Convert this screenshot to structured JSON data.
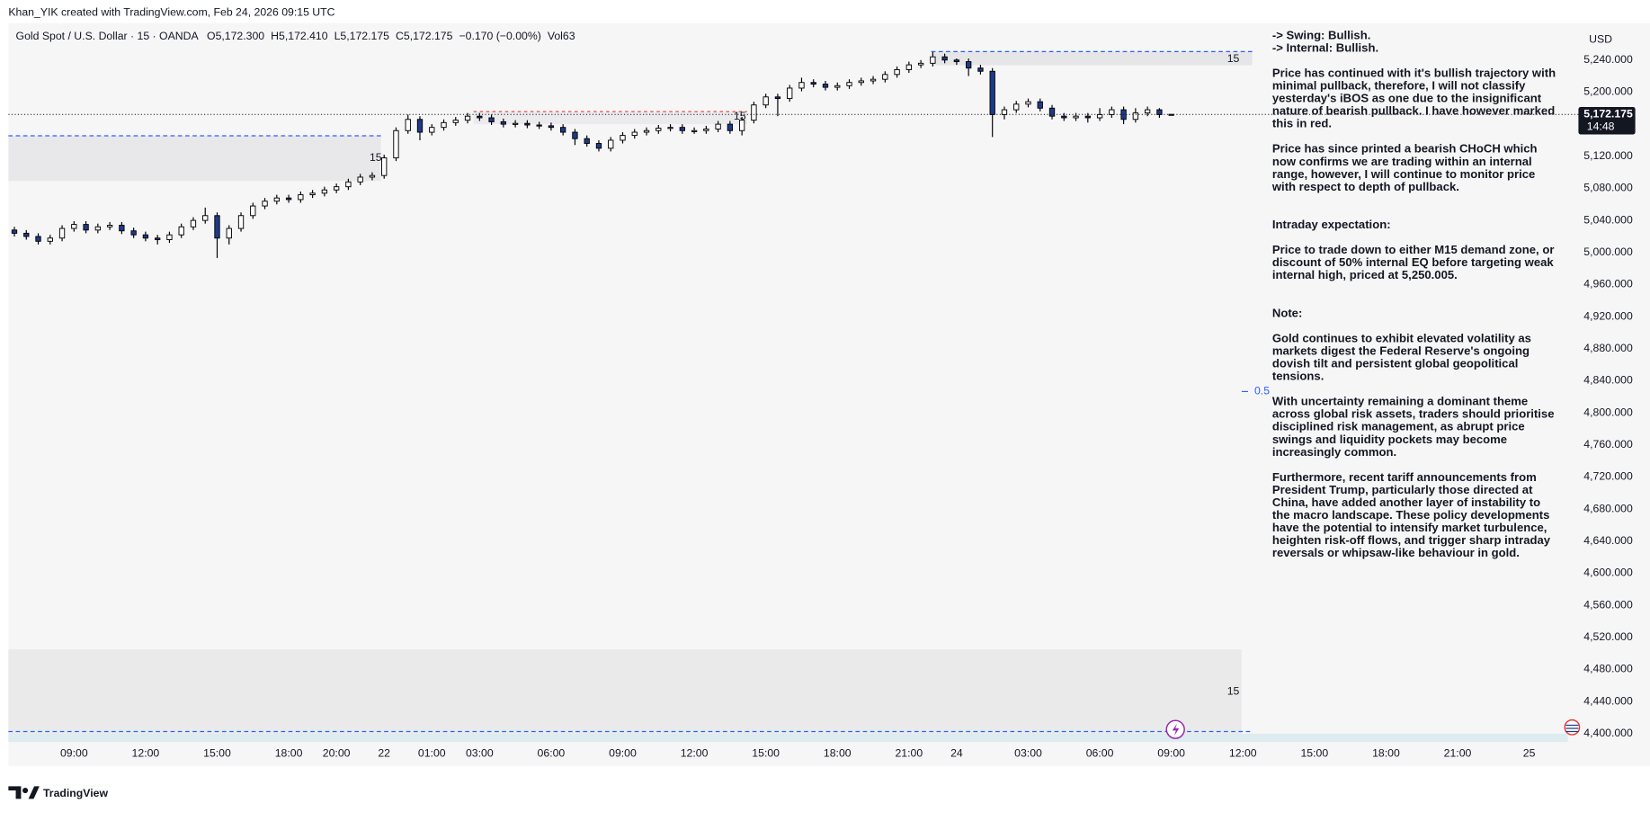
{
  "header": {
    "credit": "Khan_YIK created with TradingView.com, Feb 24, 2026 09:15 UTC",
    "symbol": "Gold Spot / U.S. Dollar · 15 · OANDA",
    "ohlc": [
      "O5,172.300",
      "H5,172.410",
      "L5,172.175",
      "C5,172.175",
      "−0.170 (−0.00%)",
      "Vol63"
    ]
  },
  "notes": [
    "-> Swing: Bullish.",
    "-> Internal: Bullish.",
    "Price has continued with it's bullish trajectory with minimal pullback, therefore, I will not classify yesterday's iBOS as one due to the insignificant nature of bearish pullback.  I have however marked this in red.",
    "Price has since printed a bearish CHoCH which now confirms we are trading within an internal range, however, I will continue to monitor price with respect to depth of pullback.",
    "Intraday expectation:",
    "Price to trade down to either M15 demand zone, or discount of 50% internal EQ before targeting weak internal high, priced at 5,250.005.",
    "Note:",
    "Gold continues to exhibit elevated volatility as markets digest the Federal Reserve's ongoing dovish tilt and persistent global geopolitical tensions.",
    "With uncertainty remaining a dominant theme across global risk assets, traders should prioritise disciplined risk management, as abrupt price swings and liquidity pockets may become increasingly common.",
    "Furthermore, recent tariff announcements from President Trump, particularly those directed at China, have added another layer of instability to the macro landscape. These policy developments have the potential to intensify market turbulence, heighten risk-off flows, and trigger sharp intraday reversals or whipsaw-like behaviour in gold."
  ],
  "footer": {
    "logo": "TradingView"
  },
  "chart_data": {
    "type": "candlestick",
    "currency": "USD",
    "up_color": "#ffffff",
    "down_color": "#1e3a8a",
    "wick_color": "#000000",
    "grid": false,
    "xlim": [
      0,
      261.5
    ],
    "ylim": [
      4389.5,
      5286
    ],
    "xticks": [
      {
        "value": 11,
        "label": "09:00"
      },
      {
        "value": 23,
        "label": "12:00"
      },
      {
        "value": 35,
        "label": "15:00"
      },
      {
        "value": 47,
        "label": "18:00"
      },
      {
        "value": 55,
        "label": "20:00"
      },
      {
        "value": 63,
        "label": "22"
      },
      {
        "value": 71,
        "label": "01:00"
      },
      {
        "value": 79,
        "label": "03:00"
      },
      {
        "value": 91,
        "label": "06:00"
      },
      {
        "value": 103,
        "label": "09:00"
      },
      {
        "value": 115,
        "label": "12:00"
      },
      {
        "value": 127,
        "label": "15:00"
      },
      {
        "value": 139,
        "label": "18:00"
      },
      {
        "value": 151,
        "label": "21:00"
      },
      {
        "value": 159,
        "label": "24"
      },
      {
        "value": 171,
        "label": "03:00"
      },
      {
        "value": 183,
        "label": "06:00"
      },
      {
        "value": 195,
        "label": "09:00"
      },
      {
        "value": 207,
        "label": "12:00"
      },
      {
        "value": 219,
        "label": "15:00"
      },
      {
        "value": 231,
        "label": "18:00"
      },
      {
        "value": 243,
        "label": "21:00"
      },
      {
        "value": 255,
        "label": "25"
      }
    ],
    "yticks": [
      {
        "value": 5240,
        "label": "5,240.000"
      },
      {
        "value": 5200,
        "label": "5,200.000"
      },
      {
        "value": 5160,
        "label": "5,160.000"
      },
      {
        "value": 5120,
        "label": "5,120.000"
      },
      {
        "value": 5080,
        "label": "5,080.000"
      },
      {
        "value": 5040,
        "label": "5,040.000"
      },
      {
        "value": 5000,
        "label": "5,000.000"
      },
      {
        "value": 4960,
        "label": "4,960.000"
      },
      {
        "value": 4920,
        "label": "4,920.000"
      },
      {
        "value": 4880,
        "label": "4,880.000"
      },
      {
        "value": 4840,
        "label": "4,840.000"
      },
      {
        "value": 4800,
        "label": "4,800.000"
      },
      {
        "value": 4760,
        "label": "4,760.000"
      },
      {
        "value": 4720,
        "label": "4,720.000"
      },
      {
        "value": 4680,
        "label": "4,680.000"
      },
      {
        "value": 4640,
        "label": "4,640.000"
      },
      {
        "value": 4600,
        "label": "4,600.000"
      },
      {
        "value": 4560,
        "label": "4,560.000"
      },
      {
        "value": 4520,
        "label": "4,520.000"
      },
      {
        "value": 4480,
        "label": "4,480.000"
      },
      {
        "value": 4440,
        "label": "4,440.000"
      },
      {
        "value": 4400,
        "label": "4,400.000"
      }
    ],
    "last_price": {
      "value": 5172.175,
      "label": "5,172.175"
    },
    "countdown": "14:48",
    "drawing_labels": [
      "15",
      "15",
      "15",
      "15",
      "0.5"
    ],
    "x": [
      1,
      3,
      5,
      7,
      9,
      11,
      13,
      15,
      17,
      19,
      21,
      23,
      25,
      27,
      29,
      31,
      33,
      35,
      37,
      39,
      41,
      43,
      45,
      47,
      49,
      51,
      53,
      55,
      57,
      59,
      61,
      63,
      65,
      67,
      69,
      71,
      73,
      75,
      77,
      79,
      81,
      83,
      85,
      87,
      89,
      91,
      93,
      95,
      97,
      99,
      101,
      103,
      105,
      107,
      109,
      111,
      113,
      115,
      117,
      119,
      121,
      123,
      125,
      127,
      129,
      131,
      133,
      135,
      137,
      139,
      141,
      143,
      145,
      147,
      149,
      151,
      153,
      155,
      157,
      159,
      161,
      163,
      165,
      167,
      169,
      171,
      173,
      175,
      177,
      179,
      181,
      183,
      185,
      187,
      189,
      191,
      193,
      195
    ],
    "open": [
      5028,
      5024,
      5020,
      5014,
      5018,
      5030,
      5035,
      5028,
      5032,
      5034,
      5027,
      5022,
      5018,
      5016,
      5022,
      5032,
      5040,
      5046,
      5018,
      5030,
      5046,
      5058,
      5064,
      5068,
      5066,
      5072,
      5074,
      5078,
      5082,
      5088,
      5094,
      5096,
      5118,
      5152,
      5166,
      5150,
      5156,
      5162,
      5165,
      5170,
      5168,
      5163,
      5160,
      5161,
      5159,
      5158,
      5156,
      5150,
      5142,
      5136,
      5130,
      5140,
      5146,
      5150,
      5152,
      5155,
      5156,
      5152,
      5152,
      5154,
      5160,
      5152,
      5165,
      5184,
      5194,
      5192,
      5205,
      5212,
      5210,
      5206,
      5208,
      5212,
      5214,
      5216,
      5222,
      5228,
      5234,
      5236,
      5244,
      5240,
      5238,
      5230,
      5226,
      5172,
      5178,
      5185,
      5188,
      5180,
      5170,
      5168,
      5170,
      5168,
      5172,
      5178,
      5166,
      5174,
      5178,
      5172.3
    ],
    "high": [
      5032,
      5028,
      5024,
      5022,
      5034,
      5039,
      5039,
      5036,
      5038,
      5038,
      5031,
      5026,
      5022,
      5026,
      5036,
      5044,
      5056,
      5050,
      5034,
      5050,
      5062,
      5068,
      5072,
      5072,
      5076,
      5078,
      5082,
      5086,
      5092,
      5098,
      5100,
      5122,
      5156,
      5172,
      5170,
      5160,
      5166,
      5169,
      5174,
      5174,
      5172,
      5167,
      5165,
      5165,
      5163,
      5162,
      5160,
      5154,
      5146,
      5140,
      5144,
      5150,
      5154,
      5156,
      5159,
      5160,
      5160,
      5156,
      5158,
      5164,
      5164,
      5169,
      5188,
      5198,
      5198,
      5209,
      5218,
      5216,
      5214,
      5212,
      5216,
      5218,
      5220,
      5226,
      5232,
      5238,
      5240,
      5250,
      5248,
      5242,
      5242,
      5234,
      5230,
      5182,
      5189,
      5192,
      5192,
      5184,
      5174,
      5174,
      5174,
      5180,
      5182,
      5182,
      5180,
      5182,
      5180,
      5172.41
    ],
    "low": [
      5020,
      5016,
      5010,
      5010,
      5014,
      5026,
      5024,
      5024,
      5028,
      5023,
      5018,
      5014,
      5010,
      5012,
      5018,
      5028,
      5036,
      4993,
      5010,
      5026,
      5042,
      5054,
      5060,
      5062,
      5062,
      5068,
      5070,
      5074,
      5078,
      5084,
      5090,
      5092,
      5114,
      5148,
      5140,
      5146,
      5152,
      5158,
      5161,
      5164,
      5159,
      5156,
      5156,
      5155,
      5154,
      5152,
      5146,
      5134,
      5132,
      5126,
      5126,
      5136,
      5142,
      5146,
      5148,
      5151,
      5148,
      5148,
      5148,
      5150,
      5148,
      5146,
      5161,
      5180,
      5170,
      5188,
      5201,
      5206,
      5202,
      5202,
      5204,
      5208,
      5210,
      5212,
      5218,
      5224,
      5230,
      5232,
      5236,
      5234,
      5220,
      5222,
      5144,
      5166,
      5174,
      5181,
      5176,
      5166,
      5164,
      5164,
      5162,
      5164,
      5168,
      5160,
      5162,
      5170,
      5168,
      5172.175
    ],
    "close": [
      5024,
      5020,
      5014,
      5018,
      5030,
      5035,
      5028,
      5032,
      5034,
      5027,
      5022,
      5018,
      5016,
      5022,
      5032,
      5040,
      5046,
      5018,
      5030,
      5046,
      5058,
      5064,
      5068,
      5066,
      5072,
      5074,
      5078,
      5082,
      5088,
      5094,
      5096,
      5118,
      5152,
      5166,
      5150,
      5156,
      5162,
      5165,
      5170,
      5168,
      5163,
      5160,
      5161,
      5159,
      5158,
      5156,
      5150,
      5142,
      5136,
      5130,
      5140,
      5146,
      5150,
      5152,
      5155,
      5156,
      5152,
      5152,
      5154,
      5160,
      5152,
      5165,
      5184,
      5194,
      5192,
      5205,
      5212,
      5210,
      5206,
      5208,
      5212,
      5214,
      5216,
      5222,
      5228,
      5234,
      5236,
      5244,
      5240,
      5238,
      5230,
      5226,
      5172,
      5178,
      5185,
      5188,
      5180,
      5170,
      5168,
      5170,
      5168,
      5172,
      5178,
      5166,
      5174,
      5178,
      5172,
      5172.175
    ]
  }
}
